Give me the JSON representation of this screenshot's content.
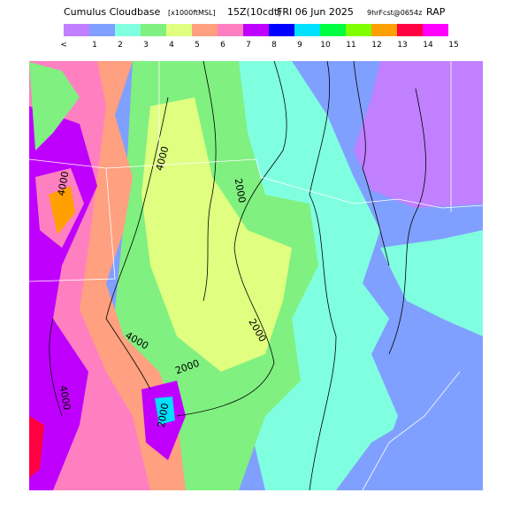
{
  "header": {
    "title": "Cumulus Cloudbase",
    "units": "[x1000ftMSL]",
    "valid": "15Z(10cdt)",
    "date": "FRI 06 Jun 2025",
    "forecast": "9hrFcst@0654z",
    "model": "RAP"
  },
  "legend": {
    "labels": [
      "<",
      "1",
      "2",
      "3",
      "4",
      "5",
      "6",
      "7",
      "8",
      "9",
      "10",
      "11",
      "12",
      "13",
      "14",
      "15"
    ],
    "colors": [
      "#c080ff",
      "#80a0ff",
      "#80ffe0",
      "#80f080",
      "#e0ff80",
      "#ffa080",
      "#ff80c0",
      "#c000ff",
      "#0000ff",
      "#00e0ff",
      "#00ff40",
      "#80ff00",
      "#ffa000",
      "#ff0040",
      "#ff00ff"
    ]
  },
  "contours": [
    "4000",
    "2000",
    "2000",
    "4000",
    "2000",
    "4000",
    "2000",
    "4000"
  ]
}
